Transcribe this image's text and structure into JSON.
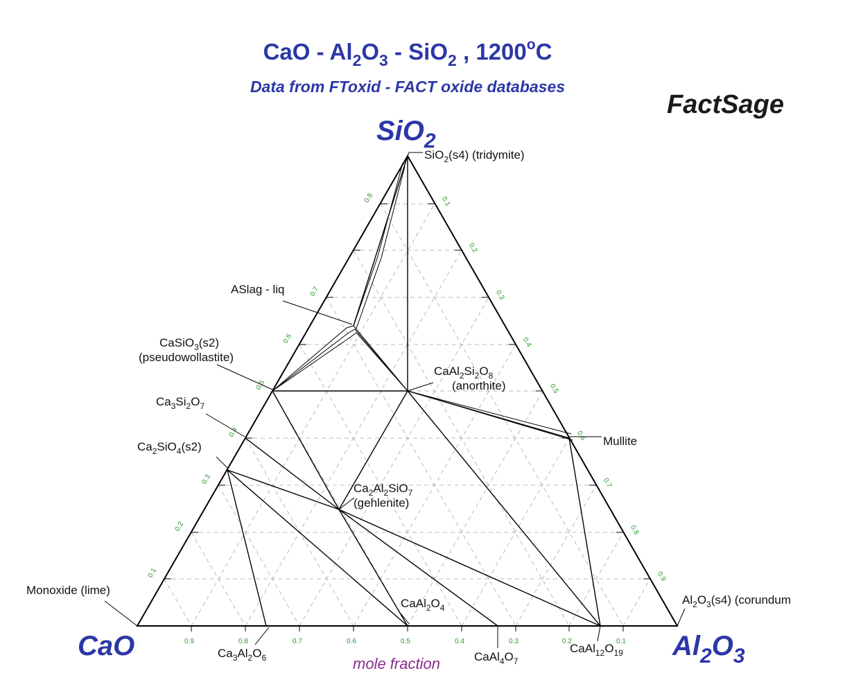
{
  "header": {
    "title_parts": [
      "CaO - Al",
      "2",
      "O",
      "3",
      " - SiO",
      "2",
      " , 1200",
      "o",
      "C"
    ],
    "subtitle": "Data from FToxid - FACT oxide databases",
    "brand": "FactSage"
  },
  "corners": {
    "top": {
      "text": "SiO",
      "sub": "2"
    },
    "left": {
      "text": "CaO"
    },
    "right": {
      "text": "Al",
      "sub1": "2",
      "mid": "O",
      "sub2": "3"
    }
  },
  "axis_label": "mole fraction",
  "ticks": {
    "bottom": [
      "0.9",
      "0.8",
      "0.7",
      "0.6",
      "0.5",
      "0.4",
      "0.3",
      "0.2",
      "0.1"
    ],
    "left": [
      "0.1",
      "0.2",
      "0.3",
      "0.4",
      "0.5",
      "0.6",
      "0.7",
      "0.8"
    ],
    "right": [
      "0.1",
      "0.2",
      "0.3",
      "0.4",
      "0.5",
      "0.6",
      "0.7",
      "0.8",
      "0.9"
    ]
  },
  "phases": {
    "tridymite": {
      "a": "SiO",
      "s1": "2",
      "b": "(s4) (tridymite)"
    },
    "aslag": "ASlag - liq",
    "casio3": {
      "a": "CaSiO",
      "s1": "3",
      "b": "(s2)",
      "line2": "(pseudowollastite)"
    },
    "ca3si2o7": {
      "a": "Ca",
      "s1": "3",
      "b": "Si",
      "s2": "2",
      "c": "O",
      "s3": "7"
    },
    "ca2sio4": {
      "a": "Ca",
      "s1": "2",
      "b": "SiO",
      "s2": "4",
      "c": "(s2)"
    },
    "anorthite": {
      "a": "CaAl",
      "s1": "2",
      "b": "Si",
      "s2": "2",
      "c": "O",
      "s3": "8",
      "line2": "(anorthite)"
    },
    "mullite": "Mullite",
    "gehlenite": {
      "a": "Ca",
      "s1": "2",
      "b": "Al",
      "s2": "2",
      "c": "SiO",
      "s3": "7",
      "line2": "(gehlenite)"
    },
    "lime": "Monoxide (lime)",
    "caal2o4": {
      "a": "CaAl",
      "s1": "2",
      "b": "O",
      "s2": "4"
    },
    "corundum": {
      "a": "Al",
      "s1": "2",
      "b": "O",
      "s2": "3",
      "c": "(s4) (corundum"
    },
    "ca3al2o6": {
      "a": "Ca",
      "s1": "3",
      "b": "Al",
      "s2": "2",
      "c": "O",
      "s3": "6"
    },
    "caal4o7": {
      "a": "CaAl",
      "s1": "4",
      "b": "O",
      "s2": "7"
    },
    "caal12o19": {
      "a": "CaAl",
      "s1": "12",
      "b": "O",
      "s2": "19"
    }
  },
  "colors": {
    "title": "#2c37a6",
    "ticks": "#2a9a2a",
    "axis_label": "#8a2b8e",
    "grid": "#b8b8b8"
  }
}
